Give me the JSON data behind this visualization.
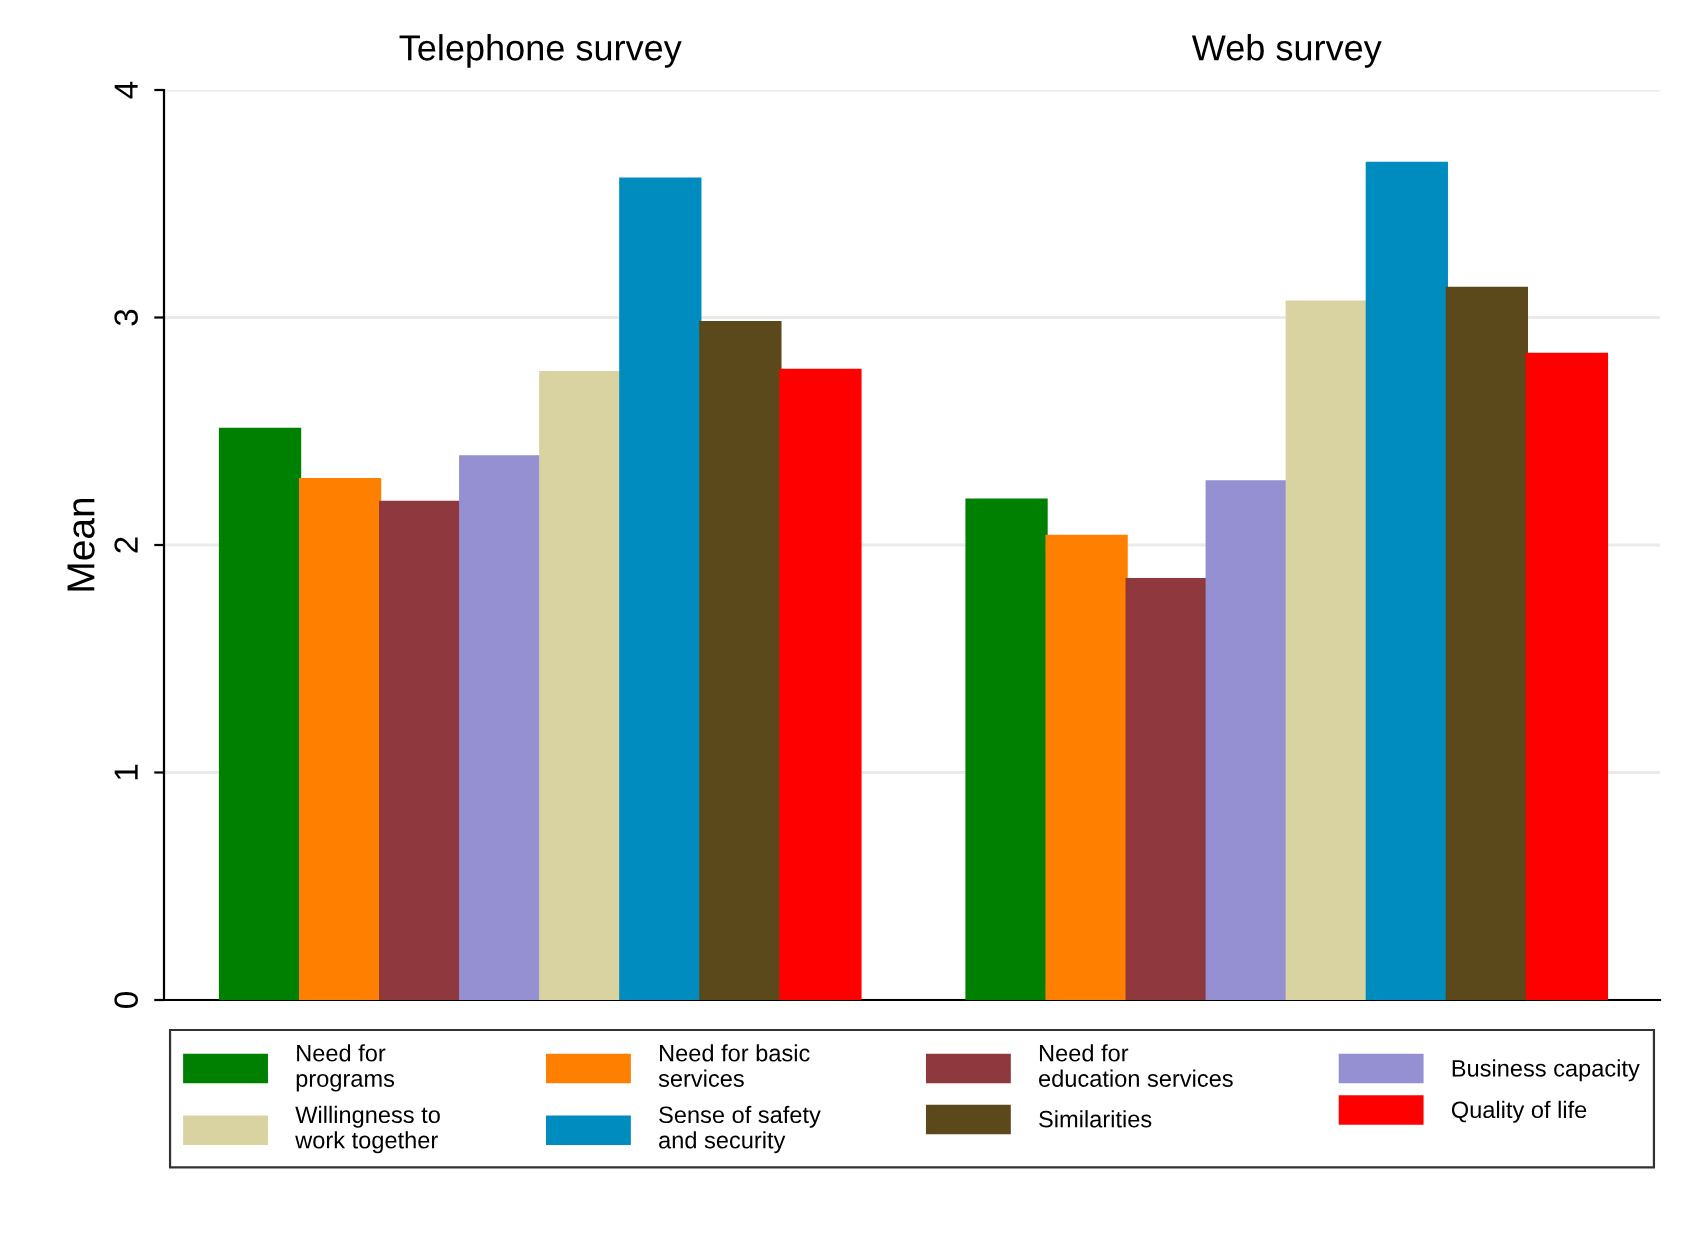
{
  "chart_data": {
    "type": "bar",
    "ylabel": "Mean",
    "categories": [
      "Telephone survey",
      "Web survey"
    ],
    "series": [
      {
        "name": "Need for\nprograms",
        "color": "#008000",
        "values": [
          2.51,
          2.2
        ]
      },
      {
        "name": "Need for basic\nservices",
        "color": "#ff7f00",
        "values": [
          2.29,
          2.04
        ]
      },
      {
        "name": "Need for\neducation services",
        "color": "#8f383d",
        "values": [
          2.19,
          1.85
        ]
      },
      {
        "name": "Business capacity",
        "color": "#9490d1",
        "values": [
          2.39,
          2.28
        ]
      },
      {
        "name": "Willingness to\nwork together",
        "color": "#d8d3a0",
        "values": [
          2.76,
          3.07
        ]
      },
      {
        "name": "Sense of safety\nand security",
        "color": "#008cbe",
        "values": [
          3.61,
          3.68
        ]
      },
      {
        "name": "Similarities",
        "color": "#5b481b",
        "values": [
          2.98,
          3.13
        ]
      },
      {
        "name": "Quality of life",
        "color": "#ff0000",
        "values": [
          2.77,
          2.84
        ]
      }
    ],
    "ylim": [
      0,
      4.0
    ],
    "yticks": [
      0,
      1,
      2,
      3,
      4
    ],
    "grid": "y",
    "legend": "bottom"
  }
}
